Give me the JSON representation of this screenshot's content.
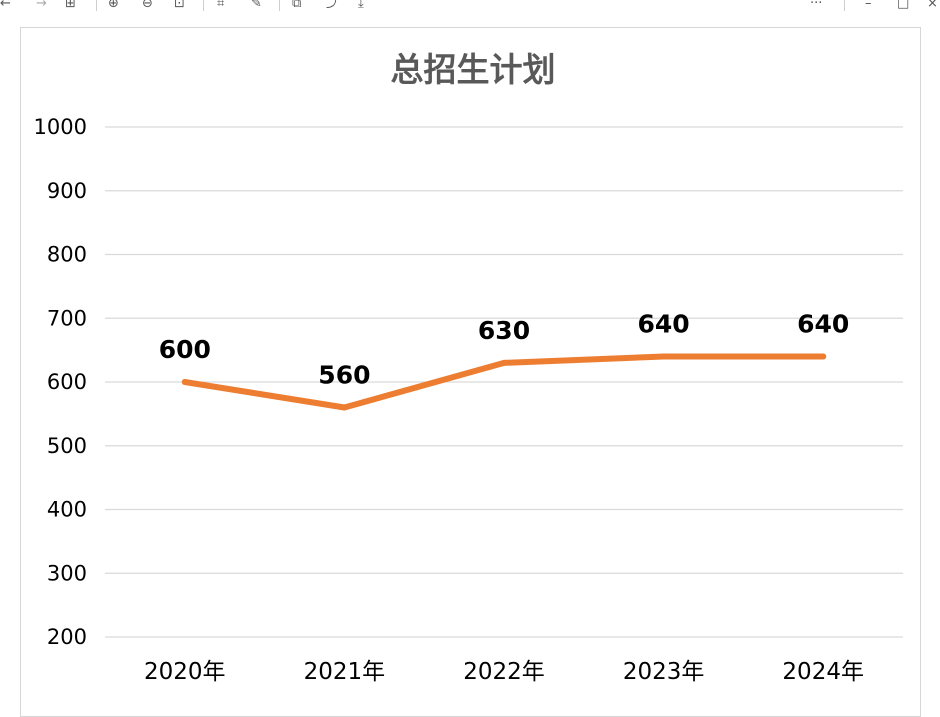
{
  "toolbar": {
    "buttons": [
      {
        "name": "back-icon",
        "glyph": "←"
      },
      {
        "name": "forward-icon",
        "glyph": "→"
      },
      {
        "name": "grid-icon",
        "glyph": "⊞"
      },
      {
        "name": "zoom-in-icon",
        "glyph": "⊕"
      },
      {
        "name": "zoom-out-icon",
        "glyph": "⊖"
      },
      {
        "name": "fit-icon",
        "glyph": "⊡"
      },
      {
        "name": "crop-icon",
        "glyph": "⌗"
      },
      {
        "name": "edit-icon",
        "glyph": "✎"
      },
      {
        "name": "copy-icon",
        "glyph": "⧉"
      },
      {
        "name": "share-icon",
        "glyph": "⤴"
      },
      {
        "name": "download-icon",
        "glyph": "⤓"
      }
    ],
    "more_glyph": "···",
    "minimize_glyph": "–",
    "maximize_glyph": "□",
    "close_glyph": "×"
  },
  "chart_data": {
    "type": "line",
    "title": "总招生计划",
    "categories": [
      "2020年",
      "2021年",
      "2022年",
      "2023年",
      "2024年"
    ],
    "series": [
      {
        "values": [
          600,
          560,
          630,
          640,
          640
        ],
        "color": "#ED7D31"
      }
    ],
    "data_labels": [
      "600",
      "560",
      "630",
      "640",
      "640"
    ],
    "yticks": [
      "1000",
      "900",
      "800",
      "700",
      "600",
      "500",
      "400",
      "300",
      "200"
    ],
    "ylim": [
      200,
      1000
    ],
    "grid": true,
    "legend": false,
    "colors": {
      "line": "#ED7D31",
      "title": "#595959",
      "gridline": "#d9d9d9"
    }
  }
}
